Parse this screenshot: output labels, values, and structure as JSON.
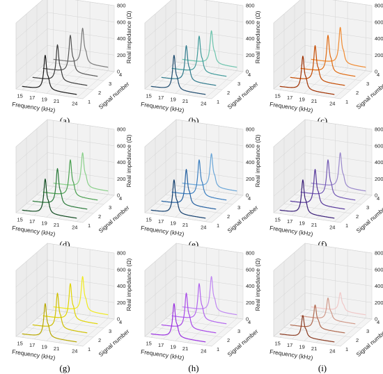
{
  "figure": {
    "panel_labels": [
      "(a)",
      "(b)",
      "(c)",
      "(d)",
      "(e)",
      "(f)",
      "(g)",
      "(h)",
      "(i)"
    ]
  },
  "chart_data": [
    {
      "type": "line",
      "panel": "(a)",
      "xlabel": "Frequency (kHz)",
      "ylabel": "Signal number",
      "zlabel": "Real impedance (Ω)",
      "x_ticks": [
        15,
        17,
        19,
        21,
        24
      ],
      "y_ticks": [
        1,
        2,
        3,
        4
      ],
      "z_ticks": [
        0,
        200,
        400,
        600,
        800
      ],
      "xlim": [
        14,
        25
      ],
      "ylim": [
        1,
        4
      ],
      "zlim": [
        0,
        800
      ],
      "peak_frequencies_khz": [
        18.8,
        19.1,
        19.5,
        19.8
      ],
      "peak_values_ohm": [
        450,
        470,
        480,
        460
      ],
      "baseline_ohm": 40,
      "colors": [
        "#1a1a1a",
        "#3a3a3a",
        "#555555",
        "#7a7a7a"
      ]
    },
    {
      "type": "line",
      "panel": "(b)",
      "xlabel": "Frequency (kHz)",
      "ylabel": "Signal number",
      "zlabel": "Real impedance (Ω)",
      "x_ticks": [
        15,
        17,
        19,
        21,
        24
      ],
      "y_ticks": [
        1,
        2,
        3,
        4
      ],
      "z_ticks": [
        0,
        200,
        400,
        600,
        800
      ],
      "xlim": [
        14,
        25
      ],
      "ylim": [
        1,
        4
      ],
      "zlim": [
        0,
        800
      ],
      "peak_frequencies_khz": [
        18.8,
        19.1,
        19.5,
        19.8
      ],
      "peak_values_ohm": [
        450,
        460,
        470,
        430
      ],
      "baseline_ohm": 40,
      "colors": [
        "#1e4b6e",
        "#2f7a8c",
        "#3f9a9a",
        "#6cc4ad"
      ]
    },
    {
      "type": "line",
      "panel": "(c)",
      "xlabel": "Frequency (kHz)",
      "ylabel": "Signal number",
      "zlabel": "Real impedance (Ω)",
      "x_ticks": [
        15,
        17,
        19,
        21,
        24
      ],
      "y_ticks": [
        1,
        2,
        3,
        4
      ],
      "z_ticks": [
        0,
        200,
        400,
        600,
        800
      ],
      "xlim": [
        14,
        25
      ],
      "ylim": [
        1,
        4
      ],
      "zlim": [
        0,
        800
      ],
      "peak_frequencies_khz": [
        18.8,
        19.1,
        19.5,
        19.8
      ],
      "peak_values_ohm": [
        440,
        460,
        480,
        470
      ],
      "baseline_ohm": 40,
      "colors": [
        "#a03000",
        "#c44a00",
        "#e06a10",
        "#f08a30"
      ]
    },
    {
      "type": "line",
      "panel": "(d)",
      "xlabel": "Frequency (kHz)",
      "ylabel": "Signal number",
      "zlabel": "Real impedance (Ω)",
      "x_ticks": [
        15,
        17,
        19,
        21,
        24
      ],
      "y_ticks": [
        1,
        2,
        3,
        4
      ],
      "z_ticks": [
        0,
        200,
        400,
        600,
        800
      ],
      "xlim": [
        14,
        25
      ],
      "ylim": [
        1,
        4
      ],
      "zlim": [
        0,
        800
      ],
      "peak_frequencies_khz": [
        18.8,
        19.1,
        19.5,
        19.8
      ],
      "peak_values_ohm": [
        450,
        470,
        470,
        450
      ],
      "baseline_ohm": 40,
      "colors": [
        "#0f4a1f",
        "#2a7a3a",
        "#4aa050",
        "#8ad08a"
      ]
    },
    {
      "type": "line",
      "panel": "(e)",
      "xlabel": "Frequency (kHz)",
      "ylabel": "Signal number",
      "zlabel": "Real impedance (Ω)",
      "x_ticks": [
        15,
        17,
        19,
        21,
        24
      ],
      "y_ticks": [
        1,
        2,
        3,
        4
      ],
      "z_ticks": [
        0,
        200,
        400,
        600,
        800
      ],
      "xlim": [
        14,
        25
      ],
      "ylim": [
        1,
        4
      ],
      "zlim": [
        0,
        800
      ],
      "peak_frequencies_khz": [
        18.8,
        19.1,
        19.5,
        19.8
      ],
      "peak_values_ohm": [
        440,
        460,
        470,
        440
      ],
      "baseline_ohm": 40,
      "colors": [
        "#123e6e",
        "#2460a0",
        "#3a7ec0",
        "#6aa6d8"
      ]
    },
    {
      "type": "line",
      "panel": "(f)",
      "xlabel": "Frequency (kHz)",
      "ylabel": "Signal number",
      "zlabel": "Real impedance (Ω)",
      "x_ticks": [
        15,
        17,
        19,
        21,
        24
      ],
      "y_ticks": [
        1,
        2,
        3,
        4
      ],
      "z_ticks": [
        0,
        200,
        400,
        600,
        800
      ],
      "xlim": [
        14,
        25
      ],
      "ylim": [
        1,
        4
      ],
      "zlim": [
        0,
        800
      ],
      "peak_frequencies_khz": [
        18.8,
        19.1,
        19.5,
        19.8
      ],
      "peak_values_ohm": [
        440,
        460,
        470,
        450
      ],
      "baseline_ohm": 40,
      "colors": [
        "#3a1e78",
        "#55369a",
        "#7258b4",
        "#9a88cc"
      ]
    },
    {
      "type": "line",
      "panel": "(g)",
      "xlabel": "Frequency (kHz)",
      "ylabel": "Signal number",
      "zlabel": "Real impedance (Ω)",
      "x_ticks": [
        15,
        17,
        19,
        21,
        24
      ],
      "y_ticks": [
        1,
        2,
        3,
        4
      ],
      "z_ticks": [
        0,
        200,
        400,
        600,
        800
      ],
      "xlim": [
        14,
        25
      ],
      "ylim": [
        1,
        4
      ],
      "zlim": [
        0,
        800
      ],
      "peak_frequencies_khz": [
        18.8,
        19.1,
        19.5,
        19.8
      ],
      "peak_values_ohm": [
        440,
        460,
        470,
        450
      ],
      "baseline_ohm": 40,
      "colors": [
        "#b8a800",
        "#cfc000",
        "#e0d400",
        "#f0ea20"
      ]
    },
    {
      "type": "line",
      "panel": "(h)",
      "xlabel": "Frequency (kHz)",
      "ylabel": "Signal number",
      "zlabel": "Real impedance (Ω)",
      "x_ticks": [
        15,
        17,
        19,
        21,
        24
      ],
      "y_ticks": [
        1,
        2,
        3,
        4
      ],
      "z_ticks": [
        0,
        200,
        400,
        600,
        800
      ],
      "xlim": [
        14,
        25
      ],
      "ylim": [
        1,
        4
      ],
      "zlim": [
        0,
        800
      ],
      "peak_frequencies_khz": [
        18.8,
        19.1,
        19.5,
        19.8
      ],
      "peak_values_ohm": [
        440,
        460,
        470,
        450
      ],
      "baseline_ohm": 40,
      "colors": [
        "#9a30e0",
        "#a848e8",
        "#b264ee",
        "#c088f2"
      ]
    },
    {
      "type": "line",
      "panel": "(i)",
      "xlabel": "Frequency (kHz)",
      "ylabel": "Signal number",
      "zlabel": "Real impedance (Ω)",
      "x_ticks": [
        15,
        17,
        19,
        21,
        24
      ],
      "y_ticks": [
        1,
        2,
        3,
        4
      ],
      "z_ticks": [
        0,
        200,
        400,
        600,
        800
      ],
      "xlim": [
        14,
        25
      ],
      "ylim": [
        1,
        4
      ],
      "zlim": [
        0,
        800
      ],
      "peak_frequencies_khz": [
        18.8,
        19.1,
        19.5,
        19.8
      ],
      "peak_values_ohm": [
        300,
        320,
        300,
        260
      ],
      "baseline_ohm": 40,
      "colors": [
        "#8a3a20",
        "#b06a50",
        "#d09a8a",
        "#f0c8c8"
      ]
    }
  ]
}
